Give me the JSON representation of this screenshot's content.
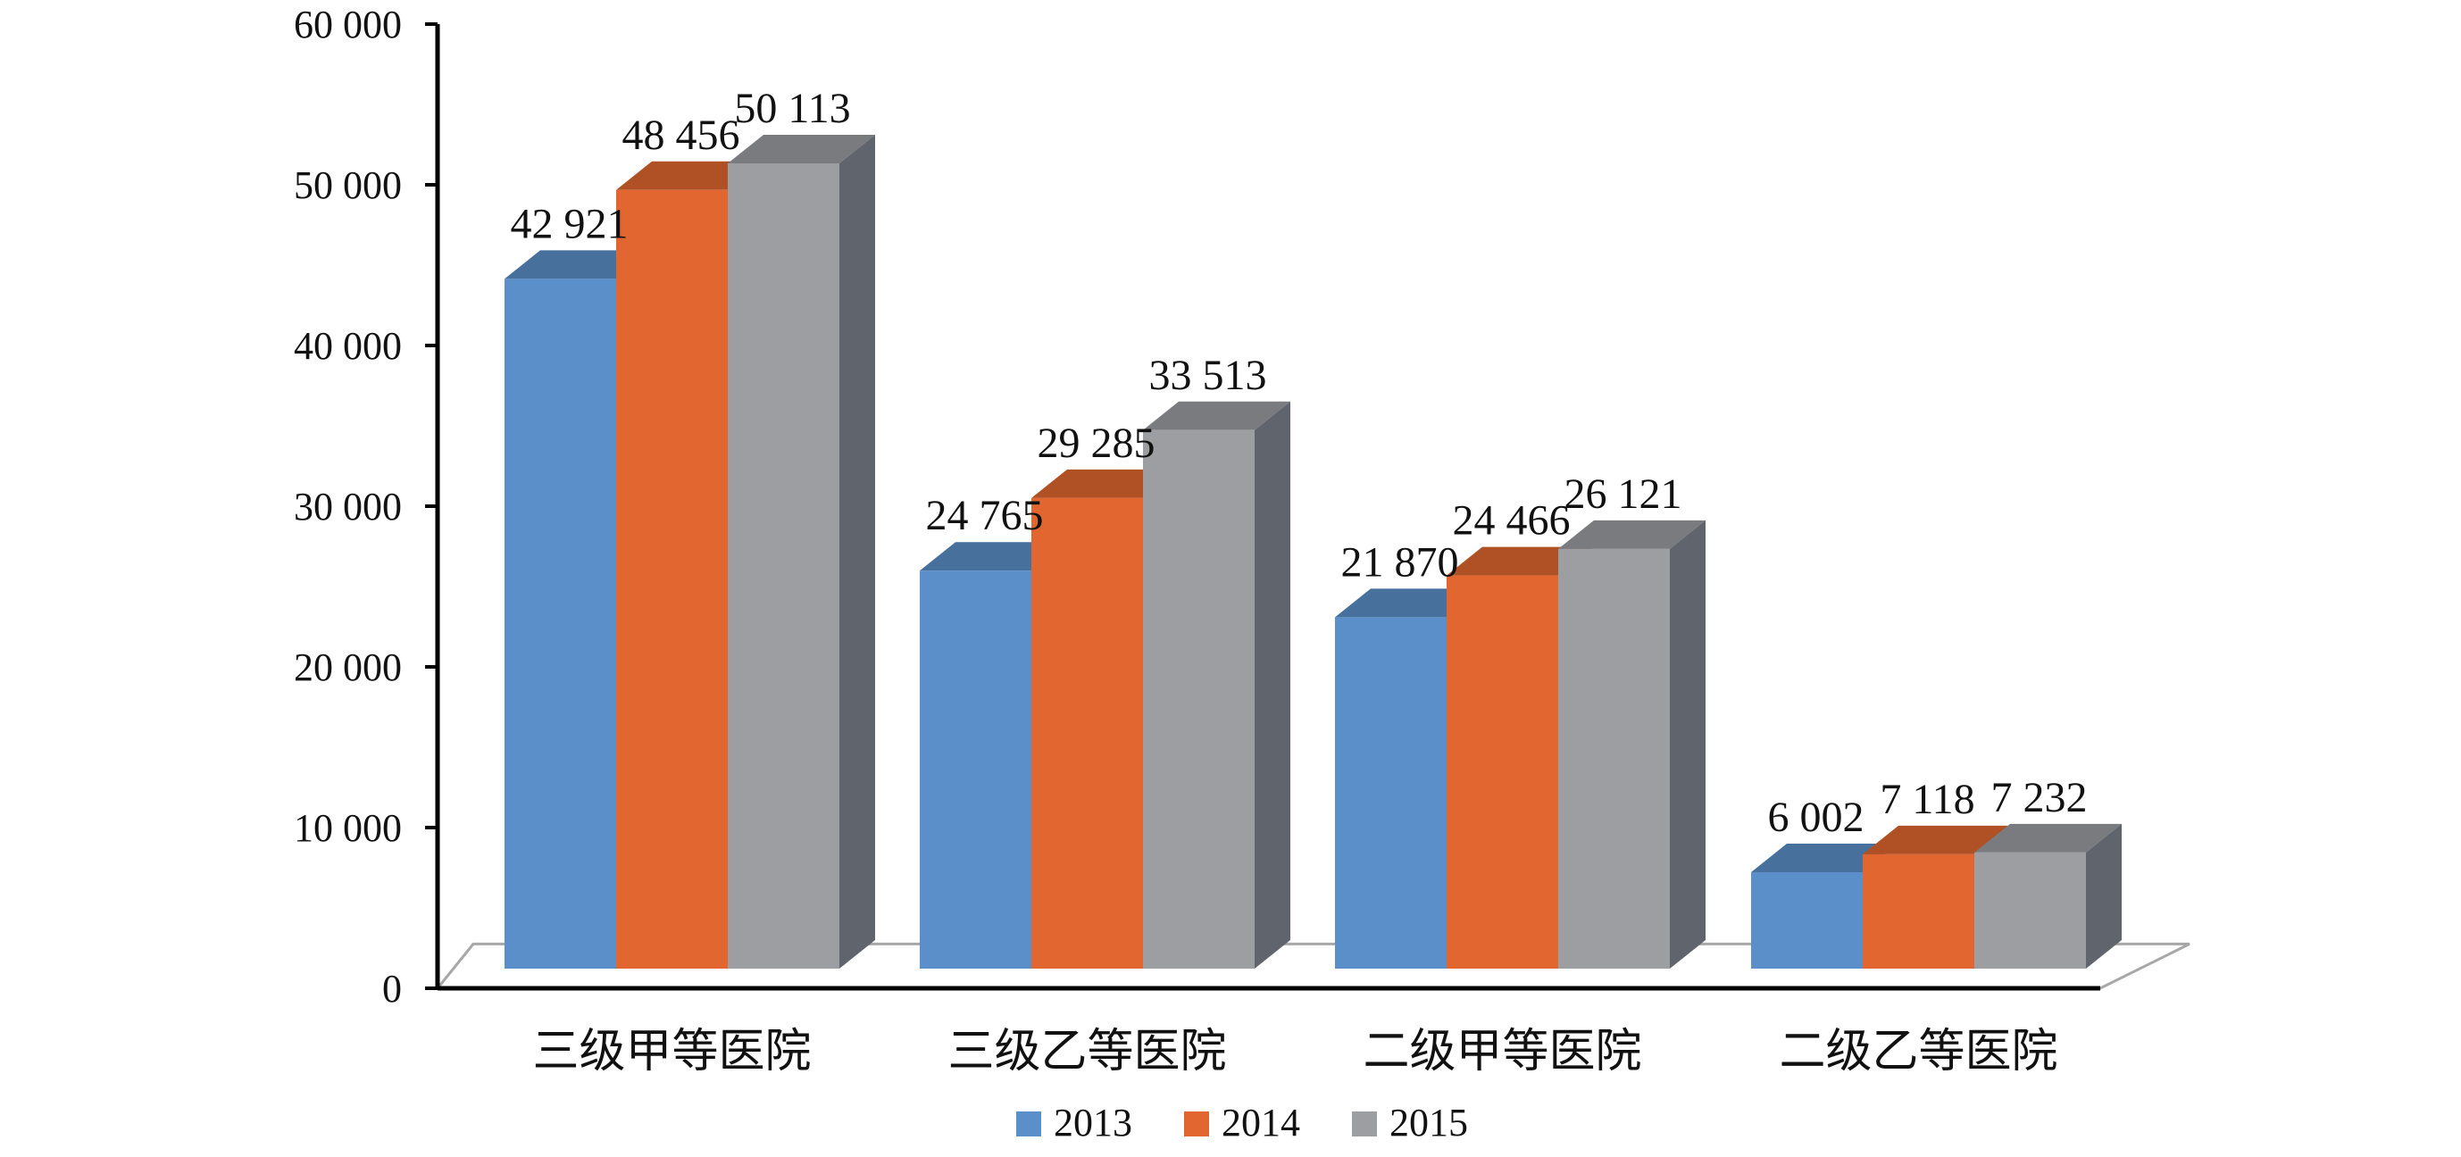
{
  "chart_data": {
    "type": "bar",
    "categories": [
      "三级甲等医院",
      "三级乙等医院",
      "二级甲等医院",
      "二级乙等医院"
    ],
    "series": [
      {
        "name": "2013",
        "values": [
          42921,
          24765,
          21870,
          6002
        ],
        "labels": [
          "42 921",
          "24 765",
          "21 870",
          "6 002"
        ],
        "color": "#5b8fc9"
      },
      {
        "name": "2014",
        "values": [
          48456,
          29285,
          24466,
          7118
        ],
        "labels": [
          "48 456",
          "29 285",
          "24 466",
          "7 118"
        ],
        "color": "#e2662f"
      },
      {
        "name": "2015",
        "values": [
          50113,
          33513,
          26121,
          7232
        ],
        "labels": [
          "50 113",
          "33 513",
          "26 121",
          "7 232"
        ],
        "color": "#9d9ea1"
      }
    ],
    "yticks": [
      "0",
      "10 000",
      "20 000",
      "30 000",
      "40 000",
      "50 000",
      "60 000"
    ],
    "ylim": [
      0,
      60000
    ],
    "style": "3d-clustered-column",
    "legend_position": "bottom",
    "grid": false
  }
}
